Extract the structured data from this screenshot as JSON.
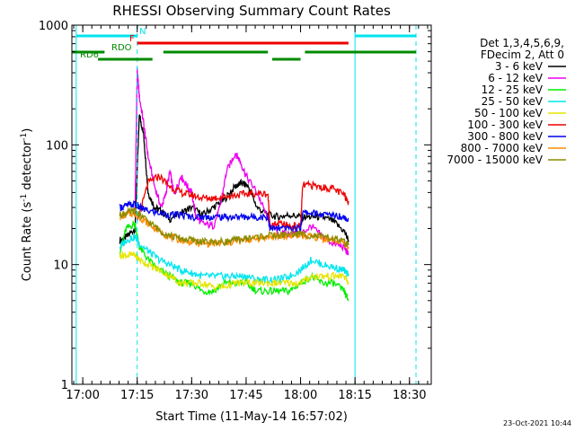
{
  "chart_data": {
    "type": "line",
    "title": "RHESSI Observing Summary Count Rates",
    "xlabel": "Start Time (11-May-14 16:57:02)",
    "ylabel": "Count Rate (s",
    "ylabel_sup1": "-1",
    "ylabel_mid": " detector",
    "ylabel_sup2": "-1",
    "ylabel_end": ")",
    "yscale": "log",
    "ylim": [
      1,
      1000
    ],
    "xlim_minutes": [
      16.95,
      18.6
    ],
    "x_ticks": [
      {
        "label": "17:00",
        "value": 17.0
      },
      {
        "label": "17:15",
        "value": 17.25
      },
      {
        "label": "17:30",
        "value": 17.5
      },
      {
        "label": "17:45",
        "value": 17.75
      },
      {
        "label": "18:00",
        "value": 18.0
      },
      {
        "label": "18:15",
        "value": 18.25
      },
      {
        "label": "18:30",
        "value": 18.5
      }
    ],
    "y_ticks": [
      {
        "label": "1",
        "value": 1
      },
      {
        "label": "10",
        "value": 10
      },
      {
        "label": "100",
        "value": 100
      },
      {
        "label": "1000",
        "value": 1000
      }
    ],
    "legend_header": [
      "Det 1,3,4,5,6,9,",
      "FDecim 2, Att 0"
    ],
    "legend_placement": "right",
    "timestamp": "23-Oct-2021 10:44",
    "flags": [
      {
        "label": "N",
        "color": "#00e5ee",
        "segments": [
          [
            16.97,
            17.25
          ],
          [
            18.25,
            18.53
          ]
        ]
      },
      {
        "label": "F",
        "color": "#ee0000",
        "segments": [
          [
            17.25,
            18.22
          ]
        ]
      },
      {
        "label": "RDO",
        "color": "#008b00",
        "segments": [
          [
            16.95,
            17.1
          ],
          [
            17.37,
            17.85
          ],
          [
            18.02,
            18.53
          ]
        ]
      },
      {
        "label": "RD6",
        "color": "#008b00",
        "segments": [
          [
            17.07,
            17.32
          ],
          [
            17.87,
            18.0
          ]
        ]
      }
    ],
    "vlines": [
      {
        "x": 17.25,
        "color": "#00e5ee",
        "style": "dashed"
      },
      {
        "x": 18.25,
        "color": "#00e5ee",
        "style": "solid"
      },
      {
        "x": 18.53,
        "color": "#00e5ee",
        "style": "dashed"
      },
      {
        "x": 16.97,
        "color": "#00e5ee",
        "style": "solid"
      }
    ],
    "series": [
      {
        "name": "3 - 6 keV",
        "color": "#000000",
        "x": [
          17.17,
          17.2,
          17.24,
          17.26,
          17.28,
          17.3,
          17.33,
          17.36,
          17.4,
          17.45,
          17.5,
          17.55,
          17.6,
          17.65,
          17.7,
          17.73,
          17.76,
          17.8,
          17.85,
          17.9,
          17.95,
          18.0,
          18.05,
          18.1,
          18.15,
          18.2,
          18.22
        ],
        "y": [
          16,
          17,
          20,
          180,
          120,
          40,
          30,
          28,
          24,
          27,
          30,
          26,
          30,
          35,
          45,
          48,
          45,
          30,
          26,
          25,
          26,
          25,
          25,
          25,
          23,
          19,
          16
        ]
      },
      {
        "name": "6 - 12 keV",
        "color": "#ee00ee",
        "x": [
          17.24,
          17.25,
          17.26,
          17.28,
          17.3,
          17.33,
          17.36,
          17.38,
          17.4,
          17.42,
          17.45,
          17.48,
          17.5,
          17.52,
          17.55,
          17.6,
          17.63,
          17.66,
          17.7,
          17.72,
          17.75,
          17.8,
          17.85,
          17.9,
          17.95,
          18.0,
          18.05,
          18.1,
          18.15,
          18.2,
          18.22
        ],
        "y": [
          30,
          420,
          250,
          150,
          80,
          45,
          30,
          38,
          60,
          38,
          55,
          45,
          40,
          25,
          22,
          21,
          30,
          60,
          85,
          75,
          55,
          40,
          24,
          18,
          18,
          18,
          21,
          17,
          15,
          14,
          12
        ]
      },
      {
        "name": "12 - 25 keV",
        "color": "#00ee00",
        "x": [
          17.17,
          17.2,
          17.24,
          17.26,
          17.3,
          17.35,
          17.4,
          17.45,
          17.5,
          17.55,
          17.6,
          17.65,
          17.7,
          17.75,
          17.8,
          17.85,
          17.9,
          17.95,
          18.0,
          18.05,
          18.1,
          18.15,
          18.2,
          18.22
        ],
        "y": [
          13,
          20,
          22,
          14,
          11,
          9,
          8,
          7,
          7,
          6,
          6,
          7,
          7,
          7,
          6,
          6,
          6,
          6,
          7,
          8,
          7,
          7,
          6,
          5
        ]
      },
      {
        "name": "25 - 50 keV",
        "color": "#00e5ee",
        "x": [
          17.17,
          17.2,
          17.24,
          17.26,
          17.3,
          17.35,
          17.4,
          17.45,
          17.5,
          17.55,
          17.6,
          17.65,
          17.7,
          17.75,
          17.8,
          17.85,
          17.9,
          17.95,
          18.0,
          18.05,
          18.1,
          18.15,
          18.2,
          18.22
        ],
        "y": [
          14,
          16,
          17,
          15,
          13,
          11,
          10,
          9,
          8.5,
          8,
          8,
          8,
          8,
          8,
          7.5,
          7.5,
          7.5,
          8,
          9,
          11,
          10,
          9.5,
          9,
          8
        ]
      },
      {
        "name": "50 - 100 keV",
        "color": "#e5e500",
        "x": [
          17.17,
          17.2,
          17.24,
          17.26,
          17.3,
          17.35,
          17.4,
          17.45,
          17.5,
          17.55,
          17.6,
          17.65,
          17.7,
          17.75,
          17.8,
          17.85,
          17.9,
          17.95,
          18.0,
          18.05,
          18.1,
          18.15,
          18.2,
          18.22
        ],
        "y": [
          12,
          12,
          12,
          11,
          10,
          9,
          8,
          7,
          7,
          7,
          6.5,
          6.5,
          7,
          7,
          7,
          7,
          7,
          7,
          7,
          8,
          8,
          8,
          8,
          7
        ]
      },
      {
        "name": "100 - 300 keV",
        "color": "#ee0000",
        "x": [
          17.25,
          17.26,
          17.3,
          17.35,
          17.4,
          17.45,
          17.5,
          17.55,
          17.6,
          17.65,
          17.7,
          17.75,
          17.8,
          17.85,
          17.86,
          17.9,
          17.95,
          18.0,
          18.01,
          18.05,
          18.1,
          18.15,
          18.2,
          18.22
        ],
        "y": [
          25,
          26,
          48,
          55,
          45,
          40,
          38,
          36,
          36,
          37,
          38,
          39,
          39,
          39,
          21,
          22,
          21,
          21,
          46,
          46,
          44,
          43,
          38,
          34
        ]
      },
      {
        "name": "300 - 800 keV",
        "color": "#0000ee",
        "x": [
          17.17,
          17.2,
          17.24,
          17.26,
          17.3,
          17.35,
          17.4,
          17.45,
          17.5,
          17.55,
          17.6,
          17.65,
          17.7,
          17.75,
          17.8,
          17.85,
          17.86,
          17.9,
          17.95,
          18.0,
          18.01,
          18.05,
          18.1,
          18.15,
          18.2,
          18.22
        ],
        "y": [
          30,
          31,
          32,
          30,
          28,
          27,
          26,
          26,
          25,
          25,
          25,
          25,
          25,
          25,
          25,
          25,
          20,
          20,
          20,
          20,
          27,
          27,
          26,
          26,
          25,
          24
        ]
      },
      {
        "name": "800 - 7000 keV",
        "color": "#ff8c00",
        "x": [
          17.17,
          17.2,
          17.24,
          17.26,
          17.3,
          17.35,
          17.4,
          17.45,
          17.5,
          17.55,
          17.6,
          17.65,
          17.7,
          17.75,
          17.8,
          17.85,
          17.9,
          17.95,
          18.0,
          18.05,
          18.1,
          18.15,
          18.2,
          18.22
        ],
        "y": [
          25,
          26,
          27,
          25,
          22,
          19,
          17,
          16,
          15.5,
          15,
          15,
          15,
          15.5,
          16,
          16.5,
          17,
          17,
          17.5,
          17.5,
          17,
          16.5,
          16,
          15,
          14
        ]
      },
      {
        "name": "7000 - 15000 keV",
        "color": "#8b8b00",
        "x": [
          17.17,
          17.2,
          17.24,
          17.26,
          17.3,
          17.35,
          17.4,
          17.45,
          17.5,
          17.55,
          17.6,
          17.65,
          17.7,
          17.75,
          17.8,
          17.85,
          17.9,
          17.95,
          18.0,
          18.05,
          18.1,
          18.15,
          18.2,
          18.22
        ],
        "y": [
          26,
          27,
          28,
          26,
          23,
          19.5,
          17.5,
          16.5,
          16,
          15.5,
          15.5,
          15.5,
          16,
          16.5,
          17,
          17.5,
          17.5,
          18,
          18,
          17.5,
          17,
          16.5,
          15.5,
          14.5
        ]
      }
    ]
  }
}
